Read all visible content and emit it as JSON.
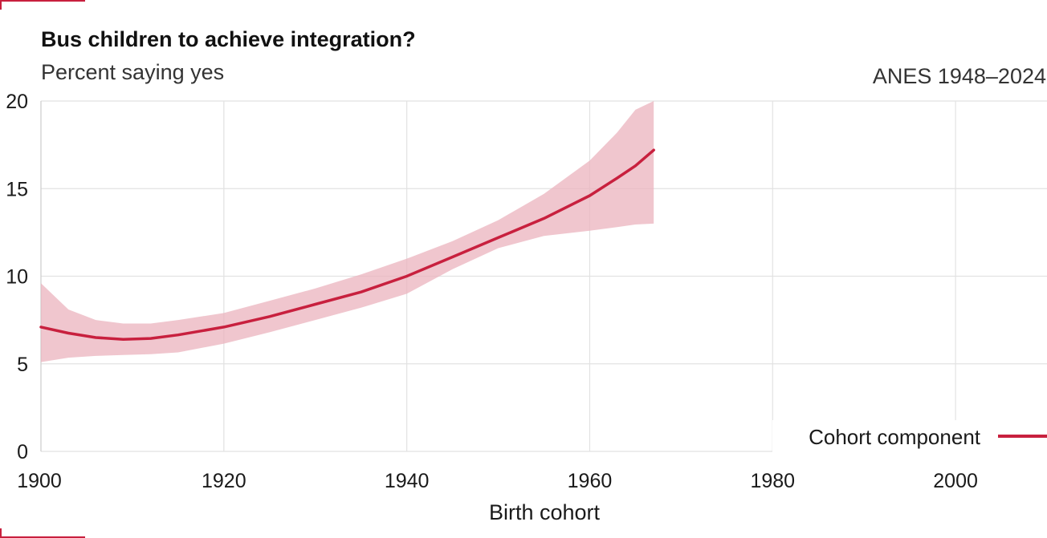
{
  "header": {
    "title": "Bus children to achieve integration?",
    "subtitle": "Percent saying yes",
    "source": "ANES 1948–2024"
  },
  "colors": {
    "accent": "#c8203e",
    "band": "#ebb3bd",
    "grid": "#e2e2e2"
  },
  "chart_data": {
    "type": "line",
    "title": "Bus children to achieve integration?",
    "subtitle": "Percent saying yes",
    "xlabel": "Birth cohort",
    "ylabel": "",
    "xlim": [
      1900,
      2010
    ],
    "ylim": [
      0,
      20
    ],
    "x_ticks": [
      1900,
      1920,
      1940,
      1960,
      1980,
      2000
    ],
    "y_ticks": [
      0,
      5,
      10,
      15,
      20
    ],
    "x_tick_labels": [
      "1900",
      "1920",
      "1940",
      "1960",
      "1980",
      "2000"
    ],
    "y_tick_labels": [
      "0",
      "5",
      "10",
      "15",
      "20"
    ],
    "grid": true,
    "legend": {
      "placement": "bottom-right",
      "entries": [
        "Cohort component"
      ]
    },
    "series": [
      {
        "name": "Cohort component",
        "x": [
          1900,
          1903,
          1906,
          1909,
          1912,
          1915,
          1920,
          1925,
          1930,
          1935,
          1940,
          1945,
          1950,
          1955,
          1960,
          1963,
          1965,
          1967
        ],
        "y": [
          7.1,
          6.75,
          6.5,
          6.4,
          6.45,
          6.65,
          7.1,
          7.7,
          8.4,
          9.1,
          10.0,
          11.1,
          12.2,
          13.3,
          14.6,
          15.6,
          16.3,
          17.2
        ],
        "lower": [
          5.1,
          5.35,
          5.45,
          5.5,
          5.55,
          5.65,
          6.15,
          6.8,
          7.5,
          8.2,
          9.0,
          10.4,
          11.6,
          12.3,
          12.6,
          12.8,
          12.95,
          13.0
        ],
        "upper": [
          9.6,
          8.1,
          7.5,
          7.3,
          7.3,
          7.5,
          7.9,
          8.6,
          9.3,
          10.1,
          11.0,
          12.0,
          13.2,
          14.7,
          16.6,
          18.2,
          19.5,
          20.0
        ]
      }
    ]
  }
}
